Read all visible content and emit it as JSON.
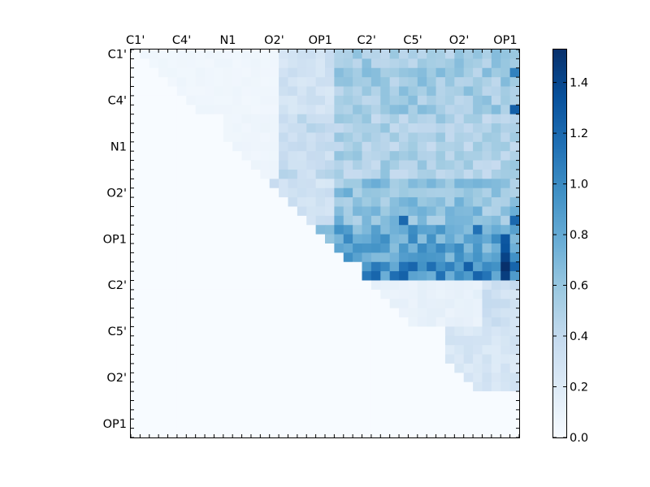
{
  "chart_data": {
    "type": "heatmap",
    "title": "",
    "xlabel": "",
    "ylabel": "",
    "x_tick_labels": [
      "C1'",
      "C4'",
      "N1",
      "O2'",
      "OP1",
      "C2'",
      "C5'",
      "O2'",
      "OP1"
    ],
    "y_tick_labels": [
      "C1'",
      "C4'",
      "N1",
      "O2'",
      "OP1",
      "C2'",
      "C5'",
      "O2'",
      "OP1"
    ],
    "rows": 42,
    "cols": 42,
    "colormap": "Blues",
    "colormap_colors": [
      "#f7fbff",
      "#deebf7",
      "#c6dbef",
      "#9ecae1",
      "#6baed6",
      "#4292c6",
      "#2171b5",
      "#08519c",
      "#08306b"
    ],
    "vmin": 0.0,
    "vmax": 1.53,
    "colorbar_ticks": [
      {
        "value": 0.0,
        "label": "0.0"
      },
      {
        "value": 0.2,
        "label": "0.2"
      },
      {
        "value": 0.4,
        "label": "0.4"
      },
      {
        "value": 0.6,
        "label": "0.6"
      },
      {
        "value": 0.8,
        "label": "0.8"
      },
      {
        "value": 1.0,
        "label": "1.0"
      },
      {
        "value": 1.2,
        "label": "1.2"
      },
      {
        "value": 1.4,
        "label": "1.4"
      }
    ],
    "regions": [
      {
        "rows": [
          0,
          7
        ],
        "cols": [
          1,
          16
        ],
        "value": 0.06
      },
      {
        "rows": [
          0,
          7
        ],
        "cols": [
          16,
          22
        ],
        "value": 0.3
      },
      {
        "rows": [
          0,
          7
        ],
        "cols": [
          22,
          42
        ],
        "value": 0.55
      },
      {
        "rows": [
          7,
          14
        ],
        "cols": [
          10,
          16
        ],
        "value": 0.07
      },
      {
        "rows": [
          7,
          14
        ],
        "cols": [
          16,
          22
        ],
        "value": 0.38
      },
      {
        "rows": [
          7,
          14
        ],
        "cols": [
          22,
          42
        ],
        "value": 0.5
      },
      {
        "rows": [
          14,
          19
        ],
        "cols": [
          15,
          22
        ],
        "value": 0.3
      },
      {
        "rows": [
          14,
          19
        ],
        "cols": [
          22,
          42
        ],
        "value": 0.62
      },
      {
        "rows": [
          19,
          23
        ],
        "cols": [
          20,
          42
        ],
        "value": 0.82
      },
      {
        "rows": [
          23,
          25
        ],
        "cols": [
          25,
          42
        ],
        "value": 1.0
      },
      {
        "rows": [
          25,
          30
        ],
        "cols": [
          25,
          42
        ],
        "value": 0.12
      },
      {
        "rows": [
          25,
          30
        ],
        "cols": [
          38,
          42
        ],
        "value": 0.32
      },
      {
        "rows": [
          30,
          37
        ],
        "cols": [
          34,
          42
        ],
        "value": 0.25
      }
    ],
    "hotspots": [
      {
        "row": 2,
        "col": 41,
        "value": 1.05
      },
      {
        "row": 6,
        "col": 41,
        "value": 1.25
      },
      {
        "row": 18,
        "col": 41,
        "value": 1.2
      },
      {
        "row": 19,
        "col": 37,
        "value": 1.15
      },
      {
        "row": 20,
        "col": 40,
        "value": 1.3
      },
      {
        "row": 21,
        "col": 40,
        "value": 1.32
      },
      {
        "row": 22,
        "col": 40,
        "value": 1.42
      },
      {
        "row": 23,
        "col": 40,
        "value": 1.53
      },
      {
        "row": 24,
        "col": 40,
        "value": 1.45
      },
      {
        "row": 23,
        "col": 36,
        "value": 1.25
      },
      {
        "row": 18,
        "col": 29,
        "value": 1.2
      }
    ]
  }
}
